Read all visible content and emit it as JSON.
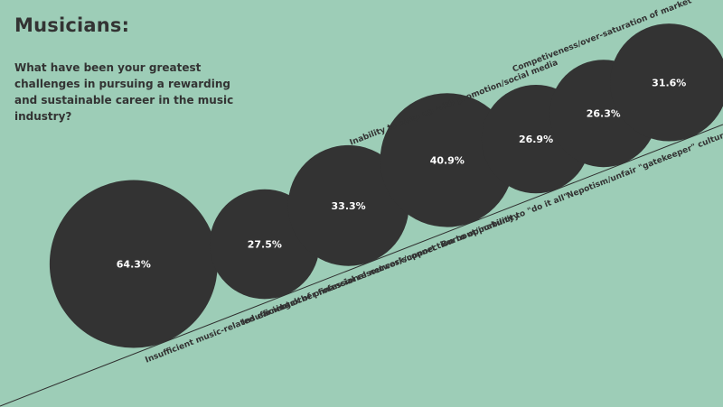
{
  "header": {
    "title": "Musicians:",
    "subtitle": "What have been your greatest challenges in pursuing a rewarding and sustainable career in the music industry?"
  },
  "colors": {
    "background": "#9dcdb7",
    "bubble": "#333333",
    "bubble_text": "#ffffff",
    "label_text": "#333333",
    "line": "#2f2f2f"
  },
  "chart_data": {
    "type": "bubble",
    "title": "Musicians:",
    "subtitle": "What have been your greatest challenges in pursuing a rewarding and sustainable career in the music industry?",
    "unit": "%",
    "categories": [
      "Insufficient music-related earnings",
      "Insufficient other financial resources/support",
      "Lack of professional network/connection to opportunity",
      "Burnout/inability to \"do it all\"",
      "Inability to keep up with promotion/social media",
      "Nepotism/unfair \"gatekeeper\" culture",
      "Competiveness/over-saturation of market"
    ],
    "values": [
      64.3,
      27.5,
      33.3,
      40.9,
      26.9,
      26.3,
      31.6
    ],
    "value_labels": [
      "64.3%",
      "27.5%",
      "33.3%",
      "40.9%",
      "26.9%",
      "26.3%",
      "31.6%"
    ],
    "label_side": [
      "below",
      "below",
      "below",
      "below",
      "above",
      "below",
      "above"
    ]
  }
}
